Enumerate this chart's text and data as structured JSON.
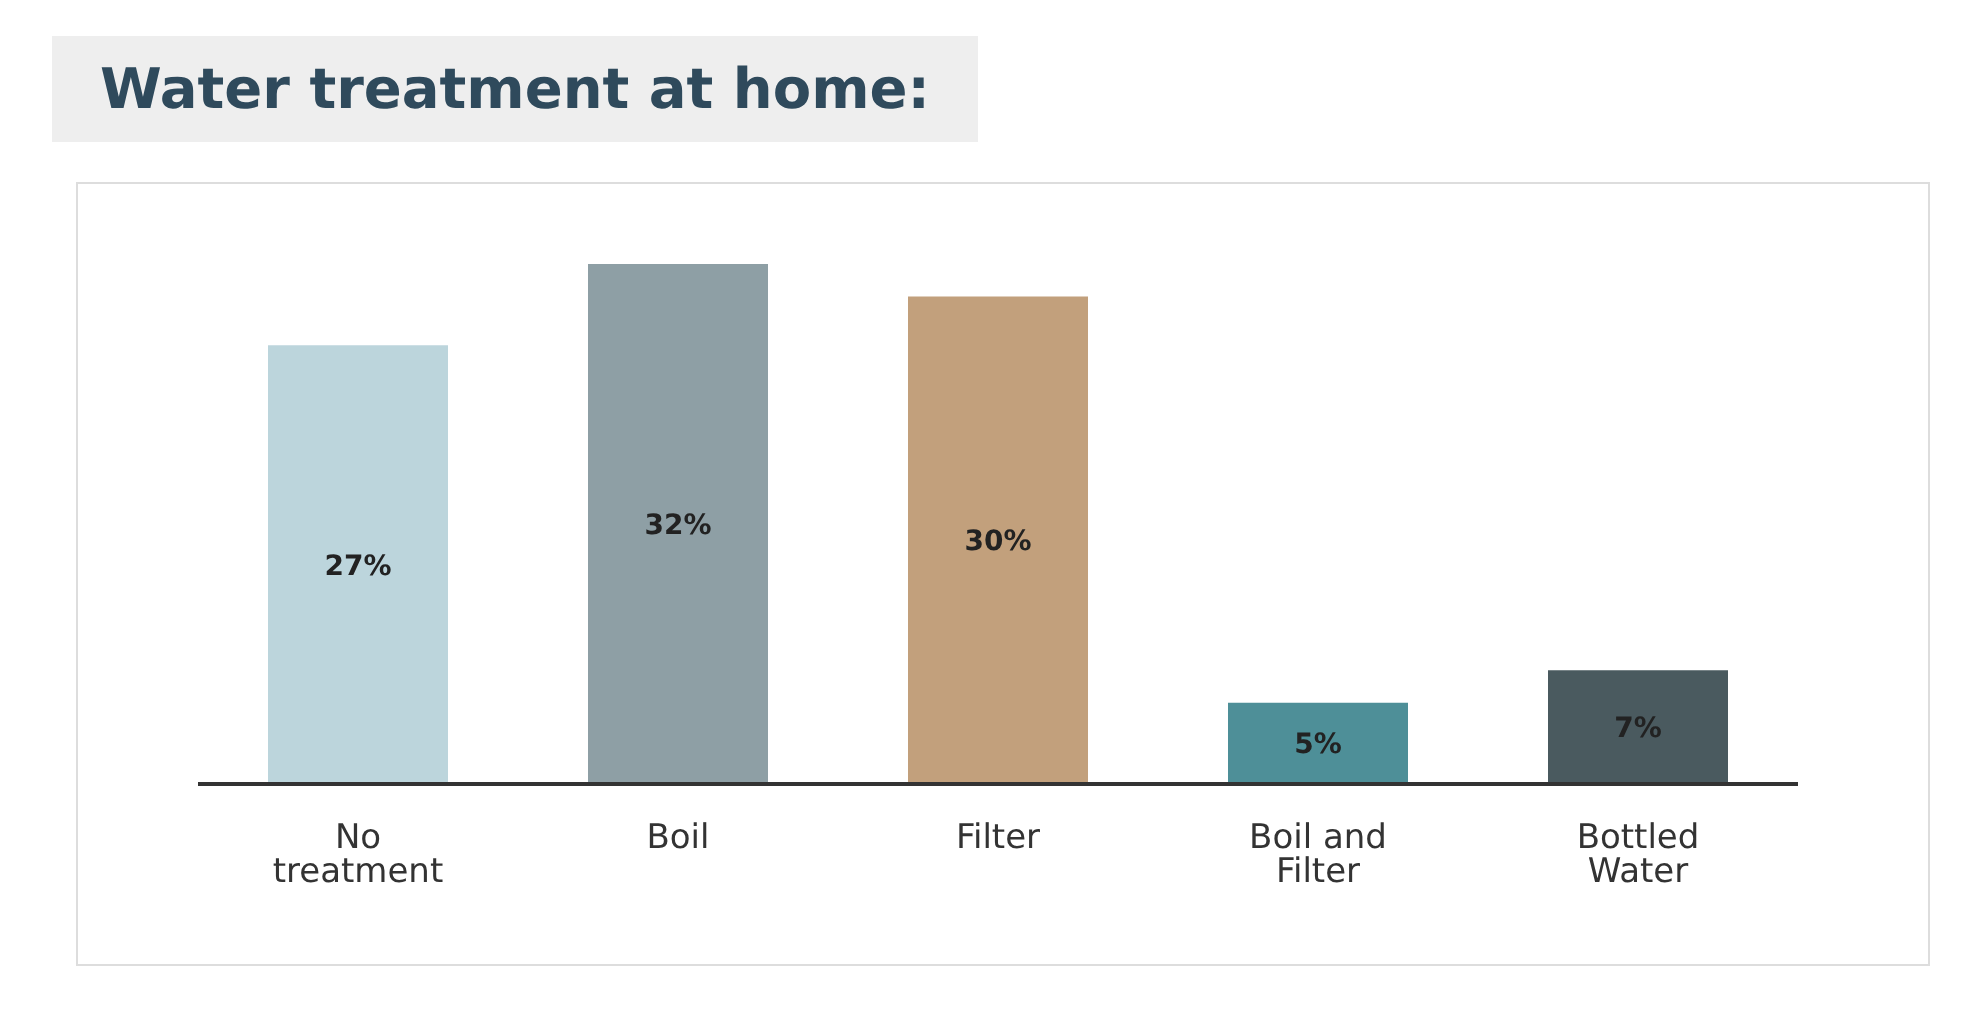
{
  "chart_data": {
    "type": "bar",
    "title": "Water treatment at home:",
    "categories": [
      "No treatment",
      "Boil",
      "Filter",
      "Boil and Filter",
      "Bottled Water"
    ],
    "values": [
      27,
      32,
      30,
      5,
      7
    ],
    "colors": [
      "#bcd5dc",
      "#8e9fa5",
      "#c2a07c",
      "#4e8f98",
      "#4a5a5f"
    ],
    "value_labels": [
      "27%",
      "32%",
      "30%",
      "5%",
      "7%"
    ],
    "tick_labels": "x"
  }
}
